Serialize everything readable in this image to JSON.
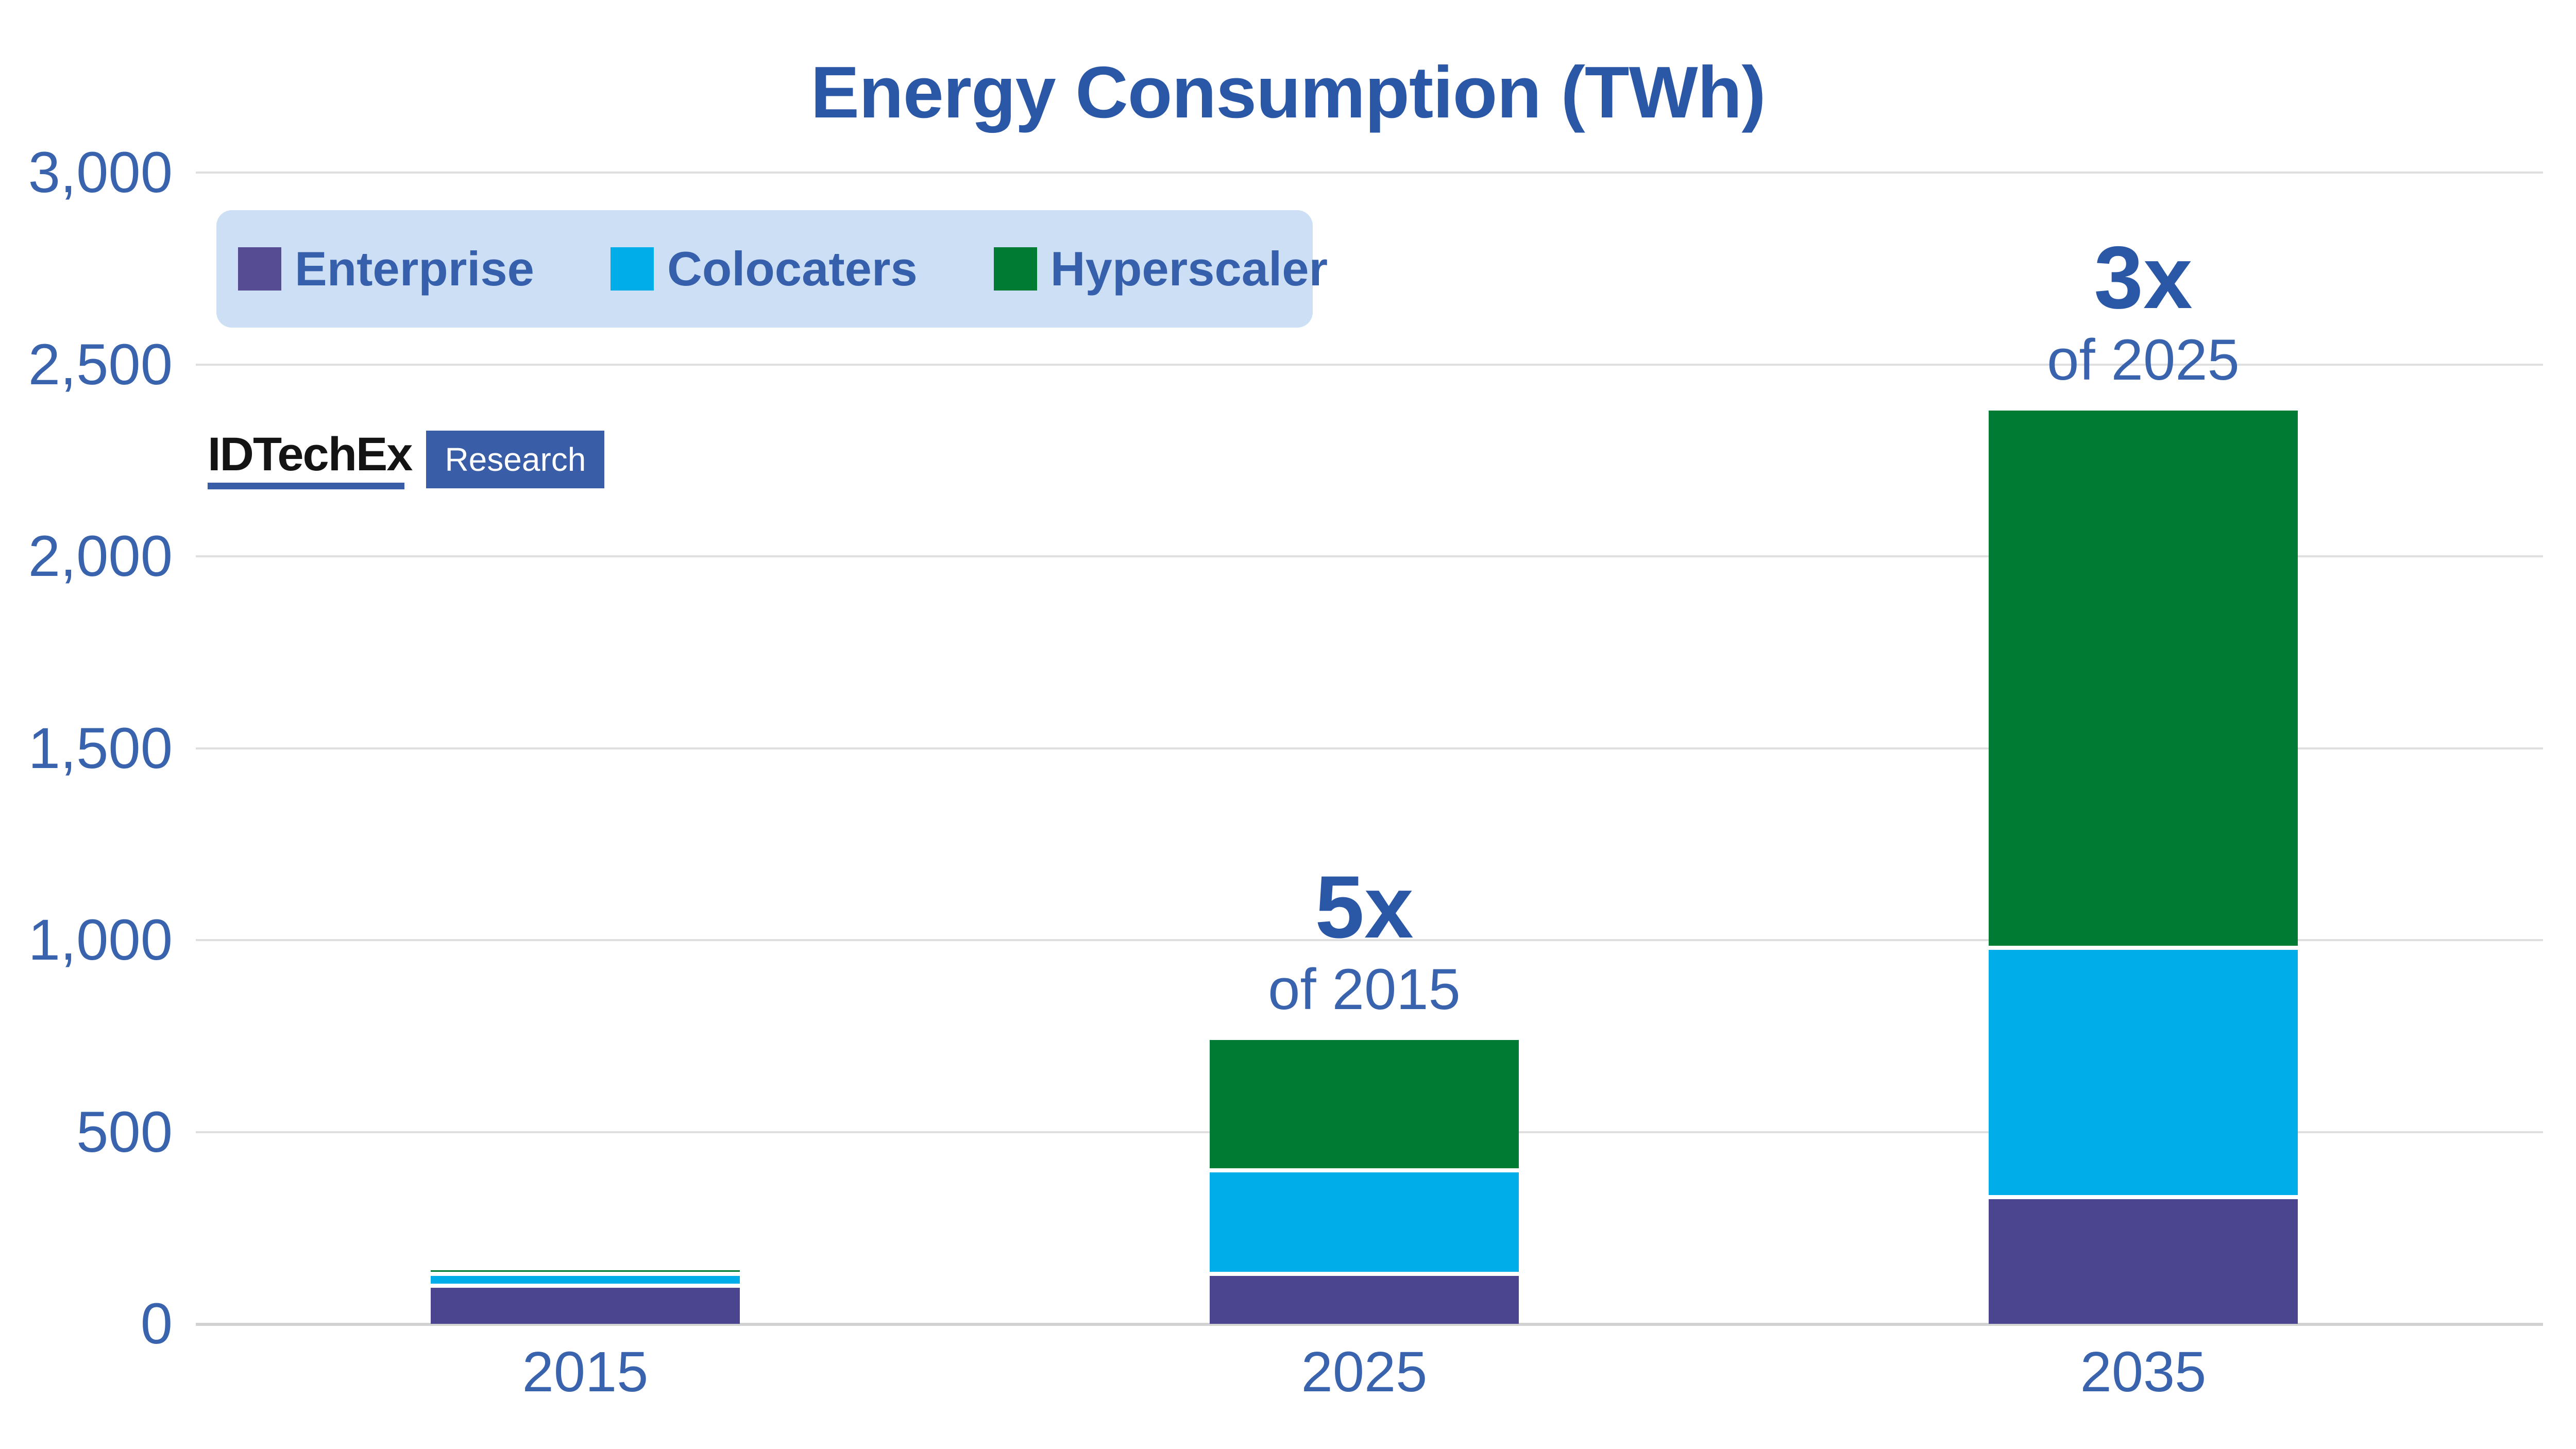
{
  "title": "Energy Consumption (TWh)",
  "legend": {
    "items": [
      {
        "label": "Enterprise",
        "swatch_color": "#564C93"
      },
      {
        "label": "Colocaters",
        "swatch_color": "#00ADE9"
      },
      {
        "label": "Hyperscaler",
        "swatch_color": "#007B33"
      }
    ],
    "background_color": "#CCDFF4"
  },
  "logo": {
    "brand": "IDTechEx",
    "sub": "Research"
  },
  "annotations": [
    {
      "big": "5x",
      "small": "of 2015",
      "category": "2025"
    },
    {
      "big": "3x",
      "small": "of 2025",
      "category": "2035"
    }
  ],
  "chart_data": {
    "type": "bar",
    "stacked": true,
    "title": "Energy Consumption (TWh)",
    "categories": [
      "2015",
      "2025",
      "2035"
    ],
    "series": [
      {
        "name": "Enterprise",
        "color": "#4B4590",
        "values": [
          100,
          130,
          330
        ]
      },
      {
        "name": "Colocaters",
        "color": "#00ADE9",
        "values": [
          30,
          270,
          650
        ]
      },
      {
        "name": "Hyperscaler",
        "color": "#007B33",
        "values": [
          10,
          340,
          1400
        ]
      }
    ],
    "totals": [
      140,
      740,
      2380
    ],
    "xlabel": "",
    "ylabel": "",
    "ylim": [
      0,
      3000
    ],
    "y_ticks": [
      "0",
      "500",
      "1,000",
      "1,500",
      "2,000",
      "2,500",
      "3,000"
    ],
    "grid": "horizontal",
    "legend_position": "top-left"
  },
  "colors": {
    "title_text": "#2B57A7",
    "axis_text": "#3A63AE",
    "gridline": "#DFDFDF",
    "baseline": "#D2D2D2",
    "logo_blue": "#3A5DA8"
  }
}
